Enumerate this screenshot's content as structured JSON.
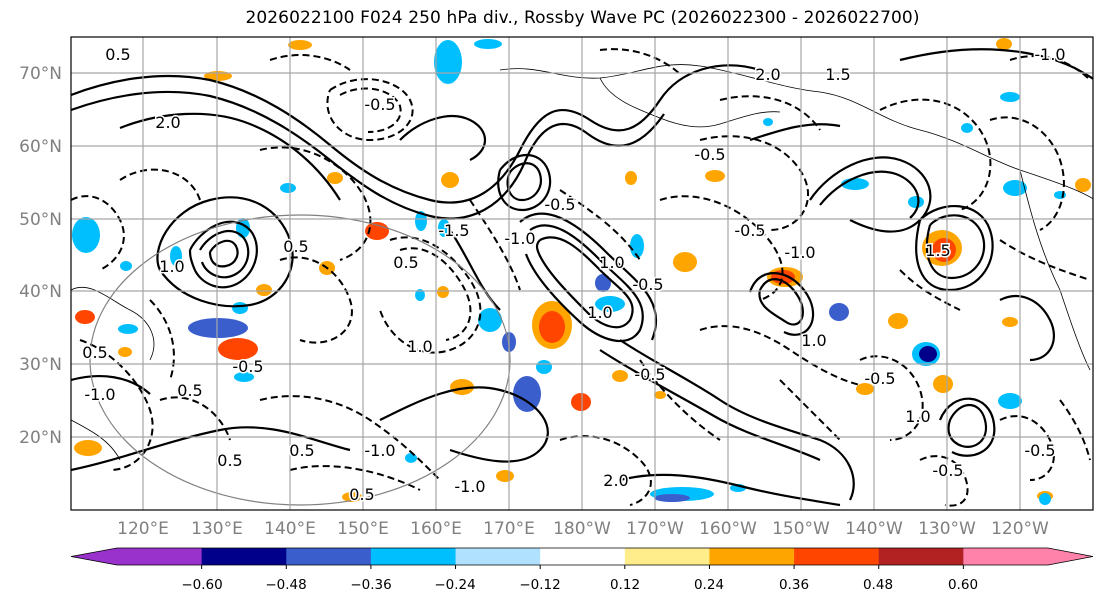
{
  "title": "2026022100 F024 250 hPa div., Rossby Wave PC (2026022300 - 2026022700)",
  "lat_labels": [
    "70°N",
    "60°N",
    "50°N",
    "40°N",
    "30°N",
    "20°N"
  ],
  "lon_labels": [
    "120°E",
    "130°E",
    "140°E",
    "150°E",
    "160°E",
    "170°E",
    "180°W",
    "170°W",
    "160°W",
    "150°W",
    "140°W",
    "130°W",
    "120°W"
  ],
  "colorbar": {
    "colors": [
      "#9932cc",
      "#00008b",
      "#3a5fcd",
      "#00bfff",
      "#b0e2ff",
      "#ffffff",
      "#ffec8b",
      "#ffa500",
      "#ff4500",
      "#b22222",
      "#ff82ab"
    ],
    "tick_labels": [
      "−0.60",
      "−0.48",
      "−0.36",
      "−0.24",
      "−0.12",
      "0.12",
      "0.24",
      "0.36",
      "0.48",
      "0.60"
    ]
  },
  "contour_labels": [
    "0.5",
    "-0.5",
    "2.0",
    "-1.0",
    "1.0",
    "0.5",
    "-1.5",
    "-0.5",
    "1.0",
    "-0.5",
    "-0.5",
    "0.5",
    "0.5",
    "-1.0",
    "1.0",
    "-0.5",
    "2.0",
    "-0.5",
    "1.5",
    "-1.0",
    "0.5",
    "-1.0",
    "1.0",
    "0.5",
    "-0.5",
    "2.0",
    "-1.0",
    "-0.5",
    "1.0",
    "1.5",
    "0.5",
    "-1.0",
    "-0.5",
    "1.0",
    "0.5",
    "-0.5"
  ]
}
